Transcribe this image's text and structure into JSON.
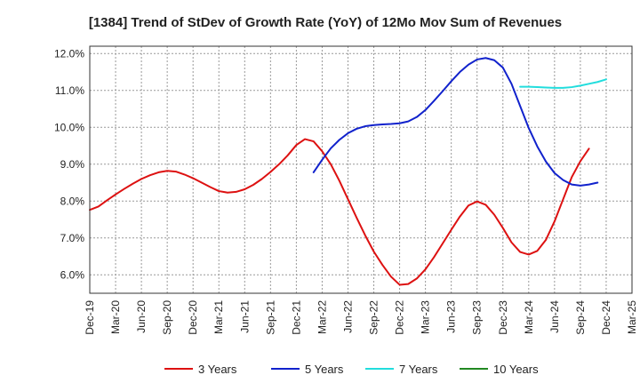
{
  "chart_data": {
    "type": "line",
    "title": "[1384]  Trend of StDev of Growth Rate (YoY) of 12Mo Mov Sum of Revenues",
    "xlabel": "",
    "ylabel": "",
    "x_ticks": [
      "Dec-19",
      "Mar-20",
      "Jun-20",
      "Sep-20",
      "Dec-20",
      "Mar-21",
      "Jun-21",
      "Sep-21",
      "Dec-21",
      "Mar-22",
      "Jun-22",
      "Sep-22",
      "Dec-22",
      "Mar-23",
      "Jun-23",
      "Sep-23",
      "Dec-23",
      "Mar-24",
      "Jun-24",
      "Sep-24",
      "Dec-24",
      "Mar-25"
    ],
    "y_ticks": [
      "6.0%",
      "7.0%",
      "8.0%",
      "9.0%",
      "10.0%",
      "11.0%",
      "12.0%"
    ],
    "y_tick_values": [
      6.0,
      7.0,
      8.0,
      9.0,
      10.0,
      11.0,
      12.0
    ],
    "ylim": [
      5.5,
      12.2
    ],
    "x_count": 64,
    "grid": true,
    "series": [
      {
        "name": "3 Years",
        "color": "#dd1111",
        "start_index": 0,
        "values": [
          7.76,
          7.85,
          8.02,
          8.18,
          8.33,
          8.47,
          8.6,
          8.7,
          8.78,
          8.82,
          8.8,
          8.72,
          8.62,
          8.5,
          8.38,
          8.27,
          8.23,
          8.25,
          8.32,
          8.44,
          8.6,
          8.79,
          9.0,
          9.24,
          9.52,
          9.68,
          9.62,
          9.35,
          9.0,
          8.55,
          8.05,
          7.55,
          7.07,
          6.63,
          6.27,
          5.95,
          5.73,
          5.75,
          5.9,
          6.15,
          6.48,
          6.85,
          7.22,
          7.58,
          7.88,
          7.99,
          7.9,
          7.63,
          7.27,
          6.88,
          6.62,
          6.55,
          6.65,
          6.95,
          7.45,
          8.05,
          8.65,
          9.08,
          9.42
        ]
      },
      {
        "name": "5 Years",
        "color": "#1122cc",
        "start_index": 26,
        "values": [
          8.78,
          9.12,
          9.43,
          9.66,
          9.84,
          9.96,
          10.03,
          10.06,
          10.08,
          10.09,
          10.11,
          10.16,
          10.28,
          10.47,
          10.72,
          10.98,
          11.25,
          11.5,
          11.7,
          11.84,
          11.88,
          11.82,
          11.62,
          11.18,
          10.58,
          9.98,
          9.48,
          9.07,
          8.76,
          8.57,
          8.45,
          8.42,
          8.45,
          8.5
        ]
      },
      {
        "name": "7 Years",
        "color": "#22dddd",
        "start_index": 50,
        "values": [
          11.1,
          11.1,
          11.09,
          11.08,
          11.07,
          11.07,
          11.09,
          11.13,
          11.18,
          11.23,
          11.3
        ]
      },
      {
        "name": "10 Years",
        "color": "#228822",
        "start_index": 0,
        "values": []
      }
    ],
    "legend_position": "bottom"
  }
}
